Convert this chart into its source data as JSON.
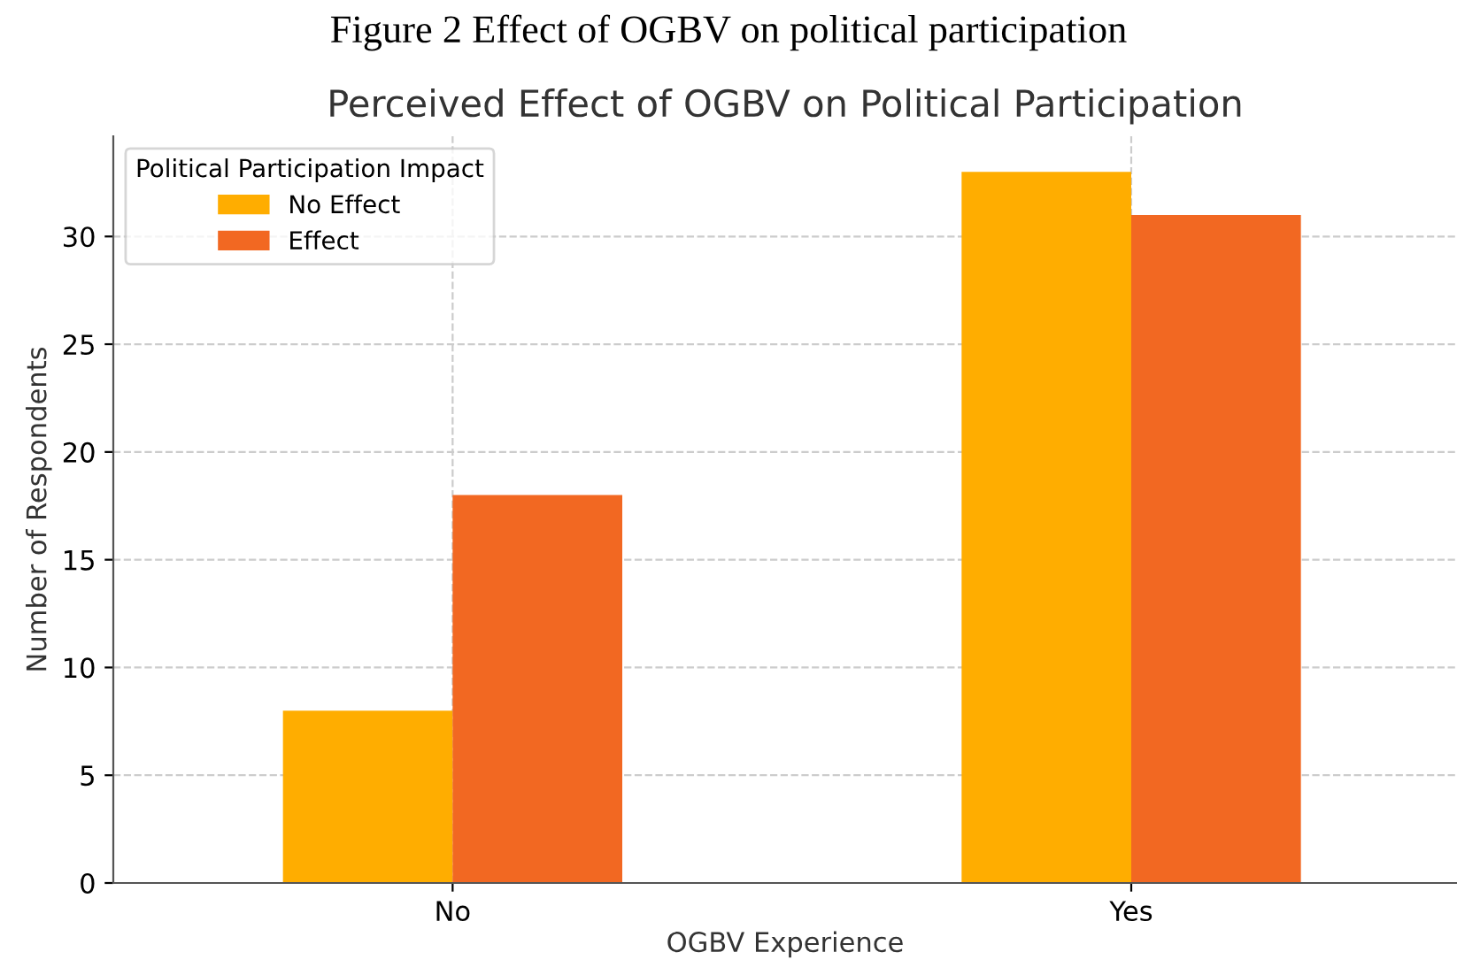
{
  "chart_data": {
    "type": "bar",
    "title": "Figure 2 Effect of OGBV on political participation",
    "subtitle": "Perceived Effect of OGBV on Political Participation",
    "xlabel": "OGBV Experience",
    "ylabel": "Number of Respondents",
    "legend_title": "Political Participation Impact",
    "categories": [
      "No",
      "Yes"
    ],
    "series": [
      {
        "name": "No Effect",
        "color": "#ffad00",
        "values": [
          8,
          33
        ]
      },
      {
        "name": "Effect",
        "color": "#f26822",
        "values": [
          18,
          31
        ]
      }
    ],
    "ylim": [
      0,
      34.65
    ],
    "yticks": [
      0,
      5,
      10,
      15,
      20,
      25,
      30
    ],
    "grid": true,
    "legend": "top left"
  }
}
